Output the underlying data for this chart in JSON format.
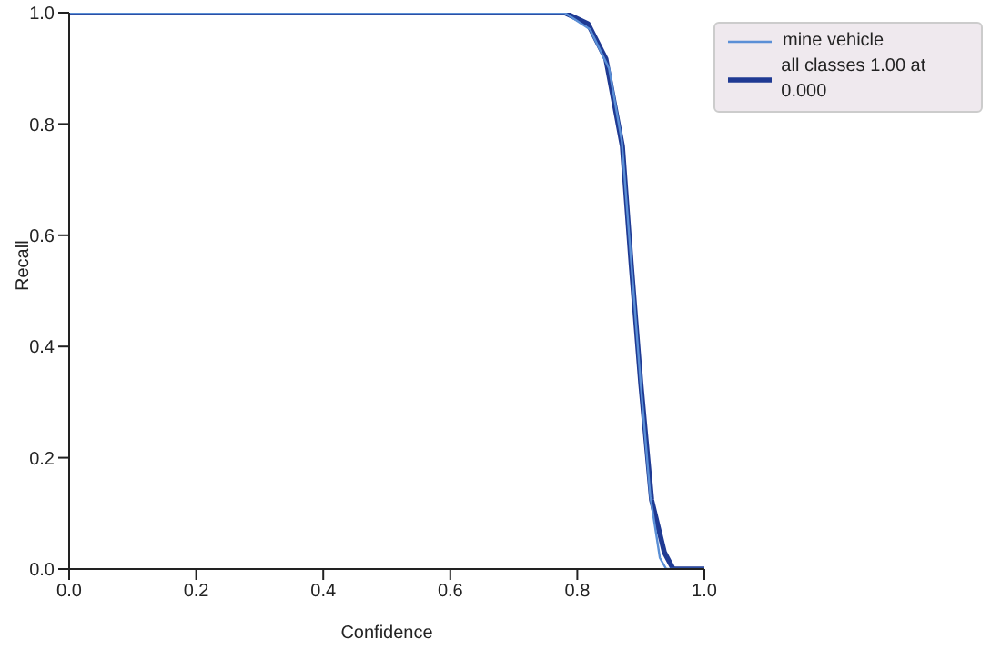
{
  "chart_data": {
    "type": "line",
    "xlabel": "Confidence",
    "ylabel": "Recall",
    "xlim": [
      0,
      1
    ],
    "ylim": [
      0,
      1
    ],
    "xticks": [
      {
        "value": 0,
        "label": "0.0"
      },
      {
        "value": 0.2,
        "label": "0.2"
      },
      {
        "value": 0.4,
        "label": "0.4"
      },
      {
        "value": 0.6,
        "label": "0.6"
      },
      {
        "value": 0.8,
        "label": "0.8"
      },
      {
        "value": 1,
        "label": "1.0"
      }
    ],
    "yticks": [
      {
        "value": 0,
        "label": "0.0"
      },
      {
        "value": 0.2,
        "label": "0.2"
      },
      {
        "value": 0.4,
        "label": "0.4"
      },
      {
        "value": 0.6,
        "label": "0.6"
      },
      {
        "value": 0.8,
        "label": "0.8"
      },
      {
        "value": 1,
        "label": "1.0"
      }
    ],
    "grid": false,
    "legend": "top right",
    "marker": "none",
    "line_style": "solid",
    "series": [
      {
        "name": "mine vehicle",
        "color": "#5a8fd6",
        "x": [
          0,
          0.78,
          0.82,
          0.85,
          0.87,
          0.885,
          0.9,
          0.915,
          0.93,
          0.94,
          1.0
        ],
        "values": [
          1,
          1,
          0.97,
          0.9,
          0.77,
          0.55,
          0.33,
          0.13,
          0.02,
          0,
          0
        ]
      },
      {
        "name": "all classes 1.00 at 0.000",
        "color": "#1f3a93",
        "x": [
          0,
          0.78,
          0.817,
          0.845,
          0.871,
          0.885,
          0.9,
          0.917,
          0.937,
          0.951,
          1.0
        ],
        "values": [
          1,
          1,
          0.98,
          0.917,
          0.76,
          0.546,
          0.333,
          0.124,
          0.03,
          0,
          0
        ]
      }
    ]
  }
}
